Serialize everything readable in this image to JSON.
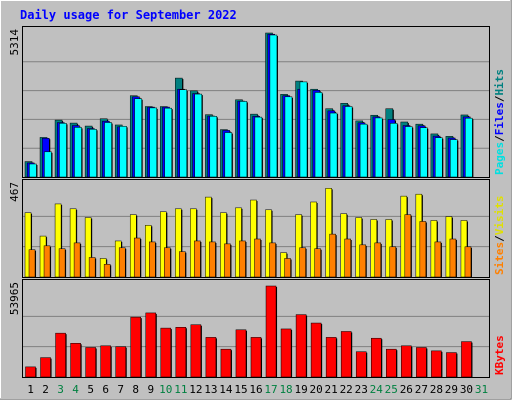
{
  "chart_data": {
    "type": "bar",
    "title": "Daily usage for September 2022",
    "categories": [
      "1",
      "2",
      "3",
      "4",
      "5",
      "6",
      "7",
      "8",
      "9",
      "10",
      "11",
      "12",
      "13",
      "14",
      "15",
      "16",
      "17",
      "18",
      "19",
      "20",
      "21",
      "22",
      "23",
      "24",
      "25",
      "26",
      "27",
      "28",
      "29",
      "30",
      "31"
    ],
    "weekend_days": [
      "3",
      "4",
      "10",
      "11",
      "17",
      "18",
      "24",
      "25",
      "31"
    ],
    "panels": [
      {
        "id": "hits-files-pages",
        "ymax_label": "5314",
        "ylim": [
          0,
          5314
        ],
        "grid": true,
        "series": [
          {
            "name": "Hits",
            "color": "#008080",
            "values": [
              570,
              1460,
              2100,
              1990,
              1880,
              2150,
              1920,
              3000,
              2600,
              2600,
              3650,
              3180,
              2300,
              1750,
              2850,
              2320,
              5314,
              3050,
              3540,
              3240,
              2520,
              2720,
              2070,
              2280,
              2520,
              2030,
              1950,
              1590,
              1500,
              2290,
              null
            ]
          },
          {
            "name": "Files",
            "color": "#0000ff",
            "values": [
              520,
              1430,
              2010,
              1900,
              1790,
              2060,
              1850,
              2960,
              2580,
              2580,
              3240,
              3080,
              2250,
              1720,
              2800,
              2240,
              5270,
              3000,
              3240,
              3200,
              2440,
              2630,
              2000,
              2220,
              2120,
              1900,
              1890,
              1510,
              1440,
              2220,
              null
            ]
          },
          {
            "name": "Pages",
            "color": "#00ffff",
            "values": [
              480,
              930,
              1980,
              1830,
              1760,
              2010,
              1870,
              2890,
              2550,
              2540,
              3220,
              3060,
              2240,
              1640,
              2790,
              2210,
              5240,
              2960,
              3510,
              3120,
              2360,
              2600,
              1950,
              2180,
              1980,
              1860,
              1820,
              1450,
              1380,
              2170,
              null
            ]
          }
        ]
      },
      {
        "id": "visits-sites",
        "ymax_label": "467",
        "ylim": [
          0,
          467
        ],
        "grid": true,
        "series": [
          {
            "name": "Visits",
            "color": "#ffff00",
            "values": [
              330,
              210,
              375,
              350,
              305,
              95,
              185,
              320,
              265,
              335,
              350,
              350,
              410,
              330,
              355,
              395,
              345,
              125,
              320,
              385,
              455,
              325,
              305,
              295,
              295,
              415,
              425,
              290,
              310,
              290,
              null
            ]
          },
          {
            "name": "Sites",
            "color": "#ff8000",
            "values": [
              140,
              160,
              145,
              175,
              100,
              65,
              150,
              200,
              180,
              150,
              130,
              185,
              180,
              170,
              185,
              195,
              175,
              95,
              150,
              145,
              220,
              195,
              165,
              175,
              155,
              320,
              285,
              180,
              195,
              155,
              null
            ]
          }
        ]
      },
      {
        "id": "kbytes",
        "ymax_label": "53965",
        "ylim": [
          0,
          53965
        ],
        "grid": true,
        "series": [
          {
            "name": "KBytes",
            "color": "#ff0000",
            "values": [
              6000,
              11500,
              26000,
              20000,
              17500,
              18500,
              18000,
              35500,
              38000,
              29000,
              29500,
              31000,
              23500,
              16500,
              28000,
              23500,
              53965,
              28500,
              37000,
              32000,
              23500,
              27000,
              15000,
              23000,
              16500,
              18500,
              17500,
              15500,
              14500,
              21000,
              null
            ]
          }
        ]
      }
    ],
    "right_legend_top": [
      {
        "text": "Pages",
        "color": "#00e0e0"
      },
      {
        "text": "/",
        "color": "#000000"
      },
      {
        "text": "Files",
        "color": "#0000ff"
      },
      {
        "text": "/",
        "color": "#000000"
      },
      {
        "text": "Hits",
        "color": "#008080"
      }
    ],
    "right_legend_mid": [
      {
        "text": "Sites",
        "color": "#ff8000"
      },
      {
        "text": "/",
        "color": "#000000"
      },
      {
        "text": "Visits",
        "color": "#e0e000"
      }
    ],
    "right_legend_bot": [
      {
        "text": "KBytes",
        "color": "#ff0000"
      }
    ],
    "colors": {
      "title": "#0000ff",
      "background": "#c0c0c0",
      "plot_background": "#c0c0c0",
      "weekday_label": "#000000",
      "weekend_label": "#008040"
    }
  }
}
